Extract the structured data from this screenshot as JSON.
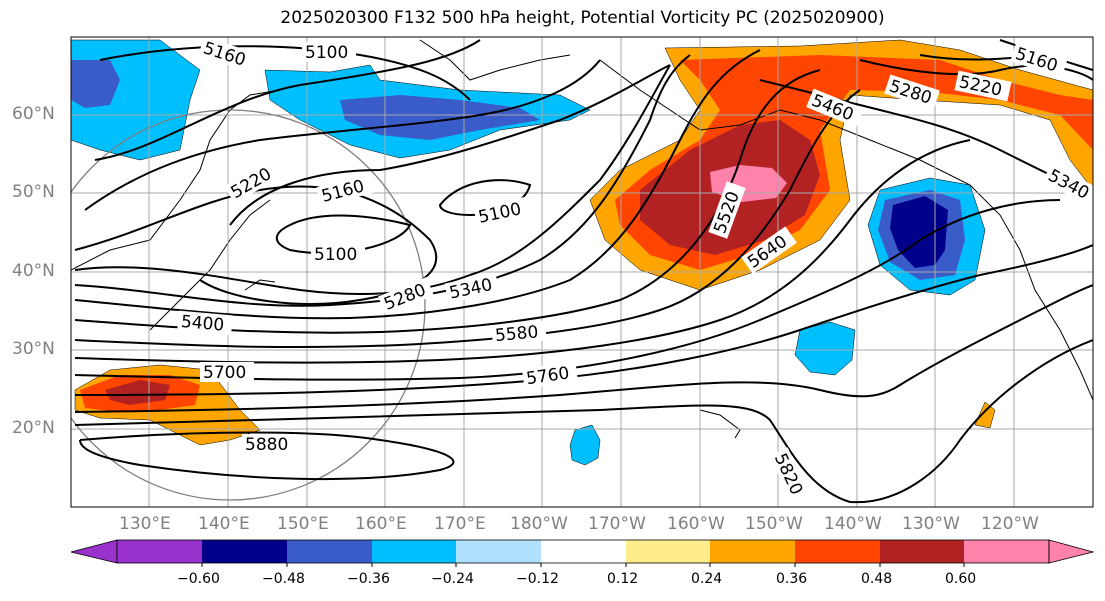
{
  "title": "2025020300 F132 500 hPa height, Potential Vorticity PC (2025020900)",
  "lat_labels": [
    "60°N",
    "50°N",
    "40°N",
    "30°N",
    "20°N"
  ],
  "lon_labels": [
    "130°E",
    "140°E",
    "150°E",
    "160°E",
    "170°E",
    "180°W",
    "170°W",
    "160°W",
    "150°W",
    "140°W",
    "130°W",
    "120°W"
  ],
  "contour_labels": [
    "5160",
    "5100",
    "5460",
    "5280",
    "5220",
    "5160",
    "5220",
    "5160",
    "5100",
    "5100",
    "5340",
    "5520",
    "5640",
    "5340",
    "5280",
    "5400",
    "5580",
    "5700",
    "5760",
    "5880",
    "5820"
  ],
  "colorbar": {
    "ticks": [
      "−0.60",
      "−0.48",
      "−0.36",
      "−0.24",
      "−0.12",
      "0.12",
      "0.24",
      "0.36",
      "0.48",
      "0.60"
    ],
    "colors": [
      "#9932cc",
      "#00008b",
      "#3a5cc9",
      "#00bfff",
      "#b0e2ff",
      "#ffffff",
      "#ffec8b",
      "#ffa500",
      "#ff4500",
      "#b22222",
      "#ff82ab",
      "#ff82ab"
    ]
  }
}
